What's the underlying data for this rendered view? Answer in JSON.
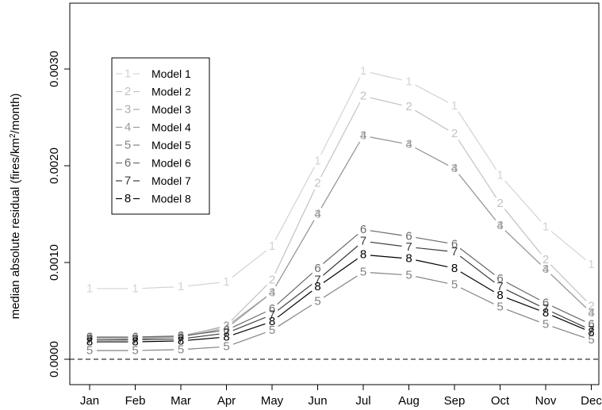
{
  "chart_data": {
    "type": "line",
    "ylabel_main": "median absolute residual (fires/km",
    "ylabel_sup": "2",
    "ylabel_tail": "/month)",
    "xlabel": "",
    "categories": [
      "Jan",
      "Feb",
      "Mar",
      "Apr",
      "May",
      "Jun",
      "Jul",
      "Aug",
      "Sep",
      "Oct",
      "Nov",
      "Dec"
    ],
    "yticks": [
      "0.0000",
      "0.0010",
      "0.0020",
      "0.0030"
    ],
    "ytick_values": [
      0,
      0.001,
      0.002,
      0.003
    ],
    "ylim": [
      0,
      0.0036
    ],
    "reference_line": {
      "y": 0,
      "style": "dashed"
    },
    "legend": {
      "placement": "top-left"
    },
    "series": [
      {
        "name": "Model 1",
        "marker": "1",
        "color": "#d3d3d3",
        "values": [
          0.00073,
          0.00073,
          0.00075,
          0.0008,
          0.00117,
          0.00205,
          0.00298,
          0.00287,
          0.00262,
          0.0019,
          0.00137,
          0.00098
        ]
      },
      {
        "name": "Model 2",
        "marker": "2",
        "color": "#c2c2c2",
        "values": [
          0.00022,
          0.00022,
          0.00023,
          0.00035,
          0.00082,
          0.00182,
          0.00272,
          0.00261,
          0.00233,
          0.00161,
          0.00103,
          0.00055
        ]
      },
      {
        "name": "Model 3",
        "marker": "3",
        "color": "#aeaeae",
        "values": [
          0.00023,
          0.00022,
          0.00024,
          0.00034,
          0.00069,
          0.0015,
          0.00231,
          0.00222,
          0.00197,
          0.00138,
          0.00093,
          0.00048
        ]
      },
      {
        "name": "Model 4",
        "marker": "4",
        "color": "#9a9a9a",
        "values": [
          0.00022,
          0.00021,
          0.00023,
          0.00032,
          0.00069,
          0.0015,
          0.00231,
          0.00222,
          0.00197,
          0.00138,
          0.00093,
          0.00048
        ]
      },
      {
        "name": "Model 5",
        "marker": "5",
        "color": "#828282",
        "values": [
          9e-05,
          9e-05,
          0.0001,
          0.00013,
          0.0003,
          0.0006,
          0.0009,
          0.00087,
          0.00077,
          0.00054,
          0.00036,
          0.0002
        ]
      },
      {
        "name": "Model 6",
        "marker": "6",
        "color": "#6a6a6a",
        "values": [
          0.00023,
          0.00023,
          0.00024,
          0.0003,
          0.00052,
          0.00094,
          0.00134,
          0.00127,
          0.00119,
          0.00083,
          0.00058,
          0.00036
        ]
      },
      {
        "name": "Model 7",
        "marker": "7",
        "color": "#3c3c3c",
        "values": [
          0.0002,
          0.0002,
          0.00021,
          0.00027,
          0.00046,
          0.00082,
          0.00122,
          0.00116,
          0.00111,
          0.00075,
          0.00052,
          0.0003
        ]
      },
      {
        "name": "Model 8",
        "marker": "8",
        "color": "#000000",
        "values": [
          0.00018,
          0.00018,
          0.00019,
          0.00023,
          0.00039,
          0.00075,
          0.00108,
          0.00104,
          0.00094,
          0.00066,
          0.00048,
          0.00028
        ]
      }
    ]
  }
}
